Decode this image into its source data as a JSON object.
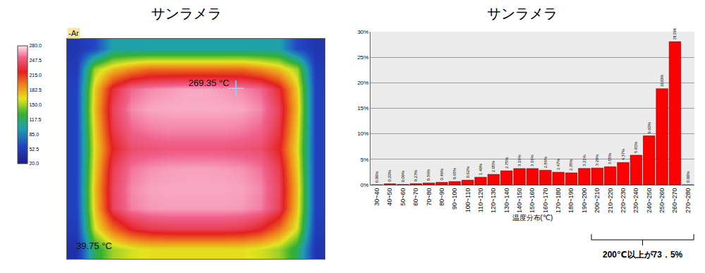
{
  "chart_data": [
    {
      "type": "heatmap",
      "title": "サンラメラ",
      "cells": [
        [
          45,
          60,
          100,
          100,
          100,
          100,
          100,
          100,
          100,
          100,
          100,
          100,
          60,
          45
        ],
        [
          50,
          150,
          175,
          190,
          200,
          200,
          200,
          200,
          200,
          200,
          190,
          175,
          150,
          50
        ],
        [
          55,
          170,
          230,
          255,
          262,
          265,
          268,
          268,
          265,
          262,
          255,
          230,
          170,
          55
        ],
        [
          55,
          175,
          240,
          262,
          268,
          269,
          269,
          269,
          269,
          268,
          262,
          240,
          175,
          55
        ],
        [
          55,
          170,
          235,
          255,
          260,
          262,
          262,
          262,
          262,
          260,
          255,
          235,
          170,
          55
        ],
        [
          55,
          165,
          225,
          245,
          248,
          250,
          250,
          250,
          250,
          248,
          245,
          225,
          165,
          55
        ],
        [
          55,
          170,
          238,
          258,
          264,
          266,
          267,
          267,
          266,
          264,
          258,
          238,
          170,
          55
        ],
        [
          55,
          175,
          242,
          262,
          267,
          268,
          268,
          268,
          268,
          267,
          262,
          242,
          175,
          55
        ],
        [
          55,
          172,
          240,
          260,
          265,
          266,
          266,
          266,
          266,
          265,
          260,
          240,
          172,
          55
        ],
        [
          50,
          160,
          200,
          225,
          235,
          238,
          238,
          238,
          238,
          235,
          225,
          200,
          160,
          50
        ],
        [
          40,
          120,
          150,
          160,
          165,
          165,
          165,
          165,
          165,
          165,
          160,
          150,
          120,
          45
        ]
      ],
      "color_range": [
        20,
        280
      ],
      "color_ticks": [
        {
          "value": 20,
          "label": "20.0"
        },
        52.5,
        {
          "value": 85,
          "label": "85.0"
        },
        117.5,
        {
          "value": 150,
          "label": "150.0"
        },
        182.5,
        {
          "value": 215,
          "label": "215.0"
        },
        247.5,
        {
          "value": 280,
          "label": "280.0"
        }
      ],
      "annotations": [
        "-Ar",
        "269.35 °C",
        "39.75 °C"
      ],
      "tick_labels": false
    },
    {
      "type": "bar",
      "title": "サンラメラ",
      "xlabel": "温度分布(℃)",
      "categories": [
        "30~40",
        "40~50",
        "50~60",
        "60~70",
        "70~80",
        "80~90",
        "90~100",
        "100~110",
        "110~120",
        "120~130",
        "130~140",
        "140~150",
        "150~160",
        "160~170",
        "170~180",
        "180~190",
        "190~200",
        "200~210",
        "210~220",
        "220~230",
        "230~240",
        "240~250",
        "250~260",
        "260~270",
        "270~280"
      ],
      "values": [
        0.0,
        0.2,
        0.09,
        0.23,
        0.36,
        0.49,
        0.65,
        0.92,
        1.49,
        2.05,
        2.75,
        3.19,
        3.19,
        2.86,
        2.47,
        2.35,
        3.21,
        3.29,
        3.55,
        4.37,
        5.81,
        9.6,
        18.83,
        28.05,
        0.0
      ],
      "value_labels": [
        "0.00%",
        "0.20%",
        "0.09%",
        "0.23%",
        "0.36%",
        "0.49%",
        "0.65%",
        "0.92%",
        "1.49%",
        "2.05%",
        "2.75%",
        "3.19%",
        "3.19%",
        "2.86%",
        "2.47%",
        "2.35%",
        "3.21%",
        "3.29%",
        "3.55%",
        "4.37%",
        "5.81%",
        "9.60%",
        "18.83%",
        "28.05%",
        "0.00%"
      ],
      "data_labels": true,
      "color": "#ff0000",
      "ylim": [
        0,
        30
      ],
      "yticks": [
        {
          "value": 0,
          "label": "0%"
        },
        {
          "value": 5,
          "label": "5%"
        },
        {
          "value": 10,
          "label": "10%"
        },
        {
          "value": 15,
          "label": "15%"
        },
        {
          "value": 20,
          "label": "20%"
        },
        {
          "value": 25,
          "label": "25%"
        },
        {
          "value": 30,
          "label": "30%"
        }
      ],
      "grid": true,
      "annotations": [
        {
          "text": "200℃以上が73．5%",
          "from": "200~210",
          "to": "270~280"
        }
      ]
    }
  ]
}
